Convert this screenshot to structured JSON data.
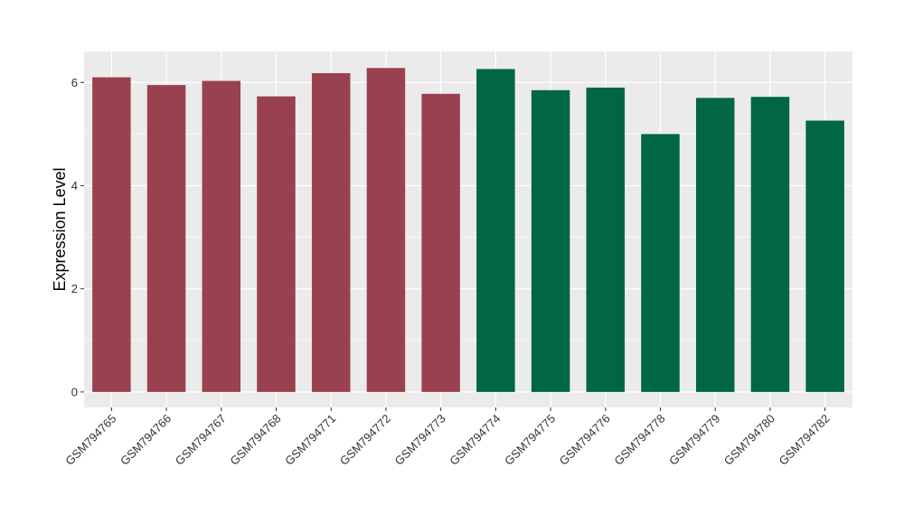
{
  "chart_data": {
    "type": "bar",
    "title": "",
    "xlabel": "",
    "ylabel": "Expression Level",
    "ylim": [
      -0.3,
      6.6
    ],
    "yticks": [
      0,
      2,
      4,
      6
    ],
    "grid": true,
    "legend": "none",
    "colors": {
      "group_a": "#9a4150",
      "group_b": "#006644",
      "panel_bg": "#ebebeb",
      "grid": "#ffffff"
    },
    "categories": [
      "GSM794765",
      "GSM794766",
      "GSM794767",
      "GSM794768",
      "GSM794771",
      "GSM794772",
      "GSM794773",
      "GSM794774",
      "GSM794775",
      "GSM794776",
      "GSM794778",
      "GSM794779",
      "GSM794780",
      "GSM794782"
    ],
    "values": [
      6.1,
      5.95,
      6.03,
      5.73,
      6.18,
      6.28,
      5.78,
      6.26,
      5.85,
      5.9,
      5.0,
      5.7,
      5.72,
      5.26
    ],
    "groups": [
      "a",
      "a",
      "a",
      "a",
      "a",
      "a",
      "a",
      "b",
      "b",
      "b",
      "b",
      "b",
      "b",
      "b"
    ]
  }
}
